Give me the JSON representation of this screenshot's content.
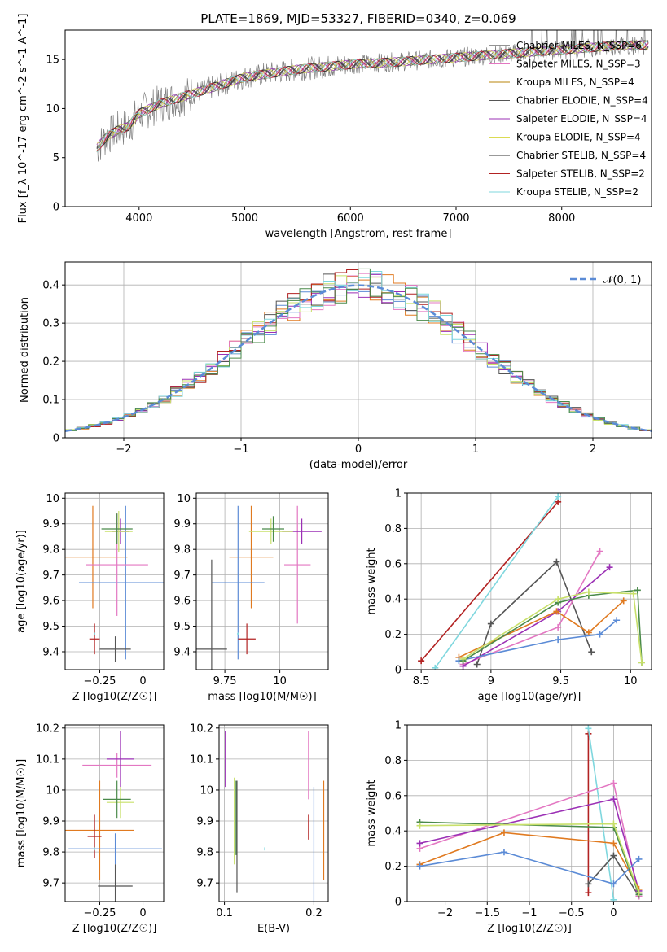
{
  "figure": {
    "title": "PLATE=1869, MJD=53327, FIBERID=0340, z=0.069"
  },
  "chart_data": [
    {
      "id": "spectrum",
      "type": "line",
      "xlabel": "wavelength [Angstrom, rest frame]",
      "ylabel": "Flux [f_λ 10^-17 erg cm^-2 s^-1 A^-1]",
      "xlim": [
        3300,
        8850
      ],
      "ylim": [
        0,
        18
      ],
      "xticks": [
        4000,
        5000,
        6000,
        7000,
        8000
      ],
      "yticks": [
        0,
        5,
        10,
        15
      ],
      "legend_position": "top-right",
      "series": [
        {
          "name": "Chabrier MILES, N_SSP=6",
          "color": "#2a2a2a"
        },
        {
          "name": "Salpeter MILES, N_SSP=3",
          "color": "#e377c2"
        },
        {
          "name": "Kroupa MILES, N_SSP=4",
          "color": "#b8860b"
        },
        {
          "name": "Chabrier ELODIE, N_SSP=4",
          "color": "#555555"
        },
        {
          "name": "Salpeter ELODIE, N_SSP=4",
          "color": "#9b30b5"
        },
        {
          "name": "Kroupa ELODIE, N_SSP=4",
          "color": "#dbdb52"
        },
        {
          "name": "Chabrier STELIB, N_SSP=4",
          "color": "#333333"
        },
        {
          "name": "Salpeter STELIB, N_SSP=2",
          "color": "#b22222"
        },
        {
          "name": "Kroupa STELIB, N_SSP=2",
          "color": "#7fd7de"
        }
      ],
      "data_color": "#808080",
      "continuum": [
        [
          3600,
          6.0
        ],
        [
          3700,
          7.2
        ],
        [
          3800,
          7.8
        ],
        [
          3900,
          8.2
        ],
        [
          4000,
          9.5
        ],
        [
          4200,
          10.5
        ],
        [
          4500,
          11.5
        ],
        [
          4800,
          12.5
        ],
        [
          5000,
          13.2
        ],
        [
          5500,
          14.0
        ],
        [
          6000,
          14.5
        ],
        [
          6500,
          14.8
        ],
        [
          7000,
          15.2
        ],
        [
          7500,
          15.6
        ],
        [
          8000,
          16.0
        ],
        [
          8500,
          16.4
        ],
        [
          8800,
          16.5
        ]
      ]
    },
    {
      "id": "residuals",
      "type": "line",
      "xlabel": "(data-model)/error",
      "ylabel": "Normed distribution",
      "xlim": [
        -2.5,
        2.5
      ],
      "ylim": [
        0,
        0.46
      ],
      "xticks": [
        -2,
        -1,
        0,
        1,
        2
      ],
      "yticks": [
        0.0,
        0.1,
        0.2,
        0.3,
        0.4
      ],
      "grid": true,
      "legend_position": "top-right",
      "legend_label": "𝒩(0, 1)",
      "legend_color": "#5b8bd6"
    },
    {
      "id": "age-vs-Z",
      "type": "scatter",
      "xlabel": "Z [log10(Z/Z☉)]",
      "ylabel": "age  [log10(age/yr)]",
      "xlim": [
        -0.45,
        0.12
      ],
      "ylim": [
        9.33,
        10.02
      ],
      "xticks": [
        -0.25,
        0.0
      ],
      "yticks": [
        9.4,
        9.5,
        9.6,
        9.7,
        9.8,
        9.9,
        10.0
      ],
      "grid": true,
      "points": [
        {
          "x": -0.29,
          "y": 9.77,
          "xerr": 0.2,
          "yerr": 0.2,
          "color": "#e07a20"
        },
        {
          "x": -0.1,
          "y": 9.67,
          "xerr": 0.27,
          "yerr": 0.3,
          "color": "#5b8bd6"
        },
        {
          "x": -0.15,
          "y": 9.74,
          "xerr": 0.18,
          "yerr": 0.2,
          "color": "#e377c2"
        },
        {
          "x": -0.13,
          "y": 9.87,
          "xerr": 0.05,
          "yerr": 0.05,
          "color": "#9b30b5"
        },
        {
          "x": -0.14,
          "y": 9.87,
          "xerr": 0.08,
          "yerr": 0.08,
          "color": "#c8e06a"
        },
        {
          "x": -0.15,
          "y": 9.88,
          "xerr": 0.09,
          "yerr": 0.06,
          "color": "#4a8a4a"
        },
        {
          "x": -0.16,
          "y": 9.41,
          "xerr": 0.09,
          "yerr": 0.05,
          "color": "#555555"
        },
        {
          "x": -0.28,
          "y": 9.45,
          "xerr": 0.03,
          "yerr": 0.06,
          "color": "#b22222"
        },
        {
          "x": -0.28,
          "y": 9.47,
          "xerr": 0.004,
          "yerr": 0.005,
          "color": "#7fd7de"
        }
      ]
    },
    {
      "id": "age-vs-mass",
      "type": "scatter",
      "xlabel": "mass [log10(M/M☉)]",
      "ylabel": "",
      "xlim": [
        9.62,
        10.22
      ],
      "ylim": [
        9.33,
        10.02
      ],
      "xticks": [
        9.75,
        10.0
      ],
      "yticks": [
        9.4,
        9.5,
        9.6,
        9.7,
        9.8,
        9.9,
        10.0
      ],
      "grid": true,
      "points": [
        {
          "x": 9.87,
          "y": 9.77,
          "xerr": 0.1,
          "yerr": 0.2,
          "color": "#e07a20"
        },
        {
          "x": 9.81,
          "y": 9.67,
          "xerr": 0.12,
          "yerr": 0.3,
          "color": "#5b8bd6"
        },
        {
          "x": 10.08,
          "y": 9.74,
          "xerr": 0.06,
          "yerr": 0.23,
          "color": "#e377c2"
        },
        {
          "x": 10.1,
          "y": 9.87,
          "xerr": 0.09,
          "yerr": 0.05,
          "color": "#9b30b5"
        },
        {
          "x": 9.96,
          "y": 9.87,
          "xerr": 0.1,
          "yerr": 0.05,
          "color": "#c8e06a"
        },
        {
          "x": 9.97,
          "y": 9.88,
          "xerr": 0.05,
          "yerr": 0.05,
          "color": "#4a8a4a"
        },
        {
          "x": 9.69,
          "y": 9.41,
          "xerr": 0.07,
          "yerr": 0.35,
          "color": "#555555"
        },
        {
          "x": 9.85,
          "y": 9.45,
          "xerr": 0.04,
          "yerr": 0.06,
          "color": "#b22222"
        },
        {
          "x": 9.81,
          "y": 9.47,
          "xerr": 0.005,
          "yerr": 0.005,
          "color": "#7fd7de"
        }
      ]
    },
    {
      "id": "weight-vs-age",
      "type": "line",
      "xlabel": "age  [log10(age/yr)]",
      "ylabel": "mass weight",
      "xlim": [
        8.4,
        10.15
      ],
      "ylim": [
        0,
        1
      ],
      "xticks": [
        8.5,
        9.0,
        9.5,
        10.0
      ],
      "yticks": [
        0.0,
        0.2,
        0.4,
        0.6,
        0.8,
        1.0
      ],
      "grid": true,
      "series": [
        {
          "color": "#b22222",
          "x": [
            8.5,
            9.48
          ],
          "y": [
            0.05,
            0.95
          ]
        },
        {
          "color": "#7fd7de",
          "x": [
            8.6,
            9.48
          ],
          "y": [
            0.01,
            0.98
          ]
        },
        {
          "color": "#555555",
          "x": [
            8.9,
            9.0,
            9.47,
            9.72
          ],
          "y": [
            0.03,
            0.26,
            0.61,
            0.1
          ]
        },
        {
          "color": "#e377c2",
          "x": [
            8.8,
            9.48,
            9.78
          ],
          "y": [
            0.03,
            0.24,
            0.67
          ]
        },
        {
          "color": "#9b30b5",
          "x": [
            8.8,
            9.48,
            9.85
          ],
          "y": [
            0.02,
            0.33,
            0.58
          ]
        },
        {
          "color": "#e07a20",
          "x": [
            8.77,
            9.47,
            9.7,
            9.95
          ],
          "y": [
            0.07,
            0.33,
            0.21,
            0.39
          ]
        },
        {
          "color": "#5b8bd6",
          "x": [
            8.77,
            9.48,
            9.78,
            9.9
          ],
          "y": [
            0.05,
            0.17,
            0.2,
            0.28
          ]
        },
        {
          "color": "#4a8a4a",
          "x": [
            8.8,
            9.48,
            9.7,
            10.05,
            10.08
          ],
          "y": [
            0.05,
            0.38,
            0.42,
            0.45,
            0.04
          ]
        },
        {
          "color": "#c8e06a",
          "x": [
            8.8,
            9.48,
            9.7,
            10.02,
            10.08
          ],
          "y": [
            0.06,
            0.4,
            0.44,
            0.43,
            0.04
          ]
        }
      ]
    },
    {
      "id": "mass-vs-Z",
      "type": "scatter",
      "xlabel": "Z [log10(Z/Z☉)]",
      "ylabel": "mass [log10(M/M☉)]",
      "xlim": [
        -0.45,
        0.12
      ],
      "ylim": [
        9.64,
        10.21
      ],
      "xticks": [
        -0.25,
        0.0
      ],
      "yticks": [
        9.7,
        9.8,
        9.9,
        10.0,
        10.1,
        10.2
      ],
      "grid": true,
      "points": [
        {
          "x": -0.25,
          "y": 9.87,
          "xerr": 0.2,
          "yerr": 0.16,
          "color": "#e07a20"
        },
        {
          "x": -0.16,
          "y": 9.81,
          "xerr": 0.27,
          "yerr": 0.05,
          "color": "#5b8bd6"
        },
        {
          "x": -0.15,
          "y": 10.08,
          "xerr": 0.2,
          "yerr": 0.04,
          "color": "#e377c2"
        },
        {
          "x": -0.13,
          "y": 10.1,
          "xerr": 0.08,
          "yerr": 0.09,
          "color": "#9b30b5"
        },
        {
          "x": -0.13,
          "y": 9.96,
          "xerr": 0.08,
          "yerr": 0.05,
          "color": "#c8e06a"
        },
        {
          "x": -0.15,
          "y": 9.97,
          "xerr": 0.08,
          "yerr": 0.06,
          "color": "#4a8a4a"
        },
        {
          "x": -0.16,
          "y": 9.69,
          "xerr": 0.1,
          "yerr": 0.07,
          "color": "#555555"
        },
        {
          "x": -0.28,
          "y": 9.85,
          "xerr": 0.04,
          "yerr": 0.07,
          "color": "#b22222"
        },
        {
          "x": -0.28,
          "y": 9.81,
          "xerr": 0.004,
          "yerr": 0.005,
          "color": "#7fd7de"
        }
      ]
    },
    {
      "id": "mass-vs-EBV",
      "type": "scatter",
      "xlabel": "E(B-V)",
      "ylabel": "",
      "xlim": [
        0.094,
        0.216
      ],
      "ylim": [
        9.64,
        10.21
      ],
      "xticks": [
        0.1,
        0.2
      ],
      "yticks": [
        9.7,
        9.8,
        9.9,
        10.0,
        10.1,
        10.2
      ],
      "grid": true,
      "points": [
        {
          "x": 0.211,
          "y": 9.87,
          "xerr": 0,
          "yerr": 0.16,
          "color": "#e07a20"
        },
        {
          "x": 0.2,
          "y": 9.81,
          "xerr": 0,
          "yerr": 0.2,
          "color": "#5b8bd6"
        },
        {
          "x": 0.194,
          "y": 10.08,
          "xerr": 0,
          "yerr": 0.11,
          "color": "#e377c2"
        },
        {
          "x": 0.101,
          "y": 10.1,
          "xerr": 0,
          "yerr": 0.09,
          "color": "#9b30b5"
        },
        {
          "x": 0.111,
          "y": 9.9,
          "xerr": 0,
          "yerr": 0.14,
          "color": "#c8e06a"
        },
        {
          "x": 0.113,
          "y": 9.91,
          "xerr": 0,
          "yerr": 0.12,
          "color": "#4a8a4a"
        },
        {
          "x": 0.114,
          "y": 9.85,
          "xerr": 0,
          "yerr": 0.18,
          "color": "#555555"
        },
        {
          "x": 0.194,
          "y": 9.88,
          "xerr": 0,
          "yerr": 0.04,
          "color": "#b22222"
        },
        {
          "x": 0.145,
          "y": 9.81,
          "xerr": 0,
          "yerr": 0.005,
          "color": "#7fd7de"
        }
      ]
    },
    {
      "id": "weight-vs-Z",
      "type": "line",
      "xlabel": "Z [log10(Z/Z☉)]",
      "ylabel": "mass weight",
      "xlim": [
        -2.45,
        0.45
      ],
      "ylim": [
        0,
        1
      ],
      "xticks": [
        -2.0,
        -1.5,
        -1.0,
        -0.5,
        0.0
      ],
      "yticks": [
        0.0,
        0.2,
        0.4,
        0.6,
        0.8,
        1.0
      ],
      "grid": true,
      "series": [
        {
          "color": "#b22222",
          "x": [
            -0.3,
            -0.3
          ],
          "y": [
            0.05,
            0.95
          ]
        },
        {
          "color": "#7fd7de",
          "x": [
            -0.3,
            0.0
          ],
          "y": [
            0.98,
            0.01
          ]
        },
        {
          "color": "#555555",
          "x": [
            -0.3,
            0.0,
            0.3
          ],
          "y": [
            0.1,
            0.26,
            0.03
          ]
        },
        {
          "color": "#e377c2",
          "x": [
            -2.3,
            0.0,
            0.3
          ],
          "y": [
            0.3,
            0.67,
            0.03
          ]
        },
        {
          "color": "#9b30b5",
          "x": [
            -2.3,
            0.0,
            0.3
          ],
          "y": [
            0.33,
            0.58,
            0.06
          ]
        },
        {
          "color": "#e07a20",
          "x": [
            -2.3,
            -1.3,
            0.0,
            0.3
          ],
          "y": [
            0.21,
            0.39,
            0.33,
            0.07
          ]
        },
        {
          "color": "#5b8bd6",
          "x": [
            -2.3,
            -1.3,
            0.0,
            0.3
          ],
          "y": [
            0.2,
            0.28,
            0.1,
            0.24
          ]
        },
        {
          "color": "#4a8a4a",
          "x": [
            -2.3,
            0.0,
            0.3
          ],
          "y": [
            0.45,
            0.42,
            0.04
          ]
        },
        {
          "color": "#c8e06a",
          "x": [
            -2.3,
            0.0,
            0.3
          ],
          "y": [
            0.43,
            0.44,
            0.05
          ]
        }
      ]
    }
  ]
}
